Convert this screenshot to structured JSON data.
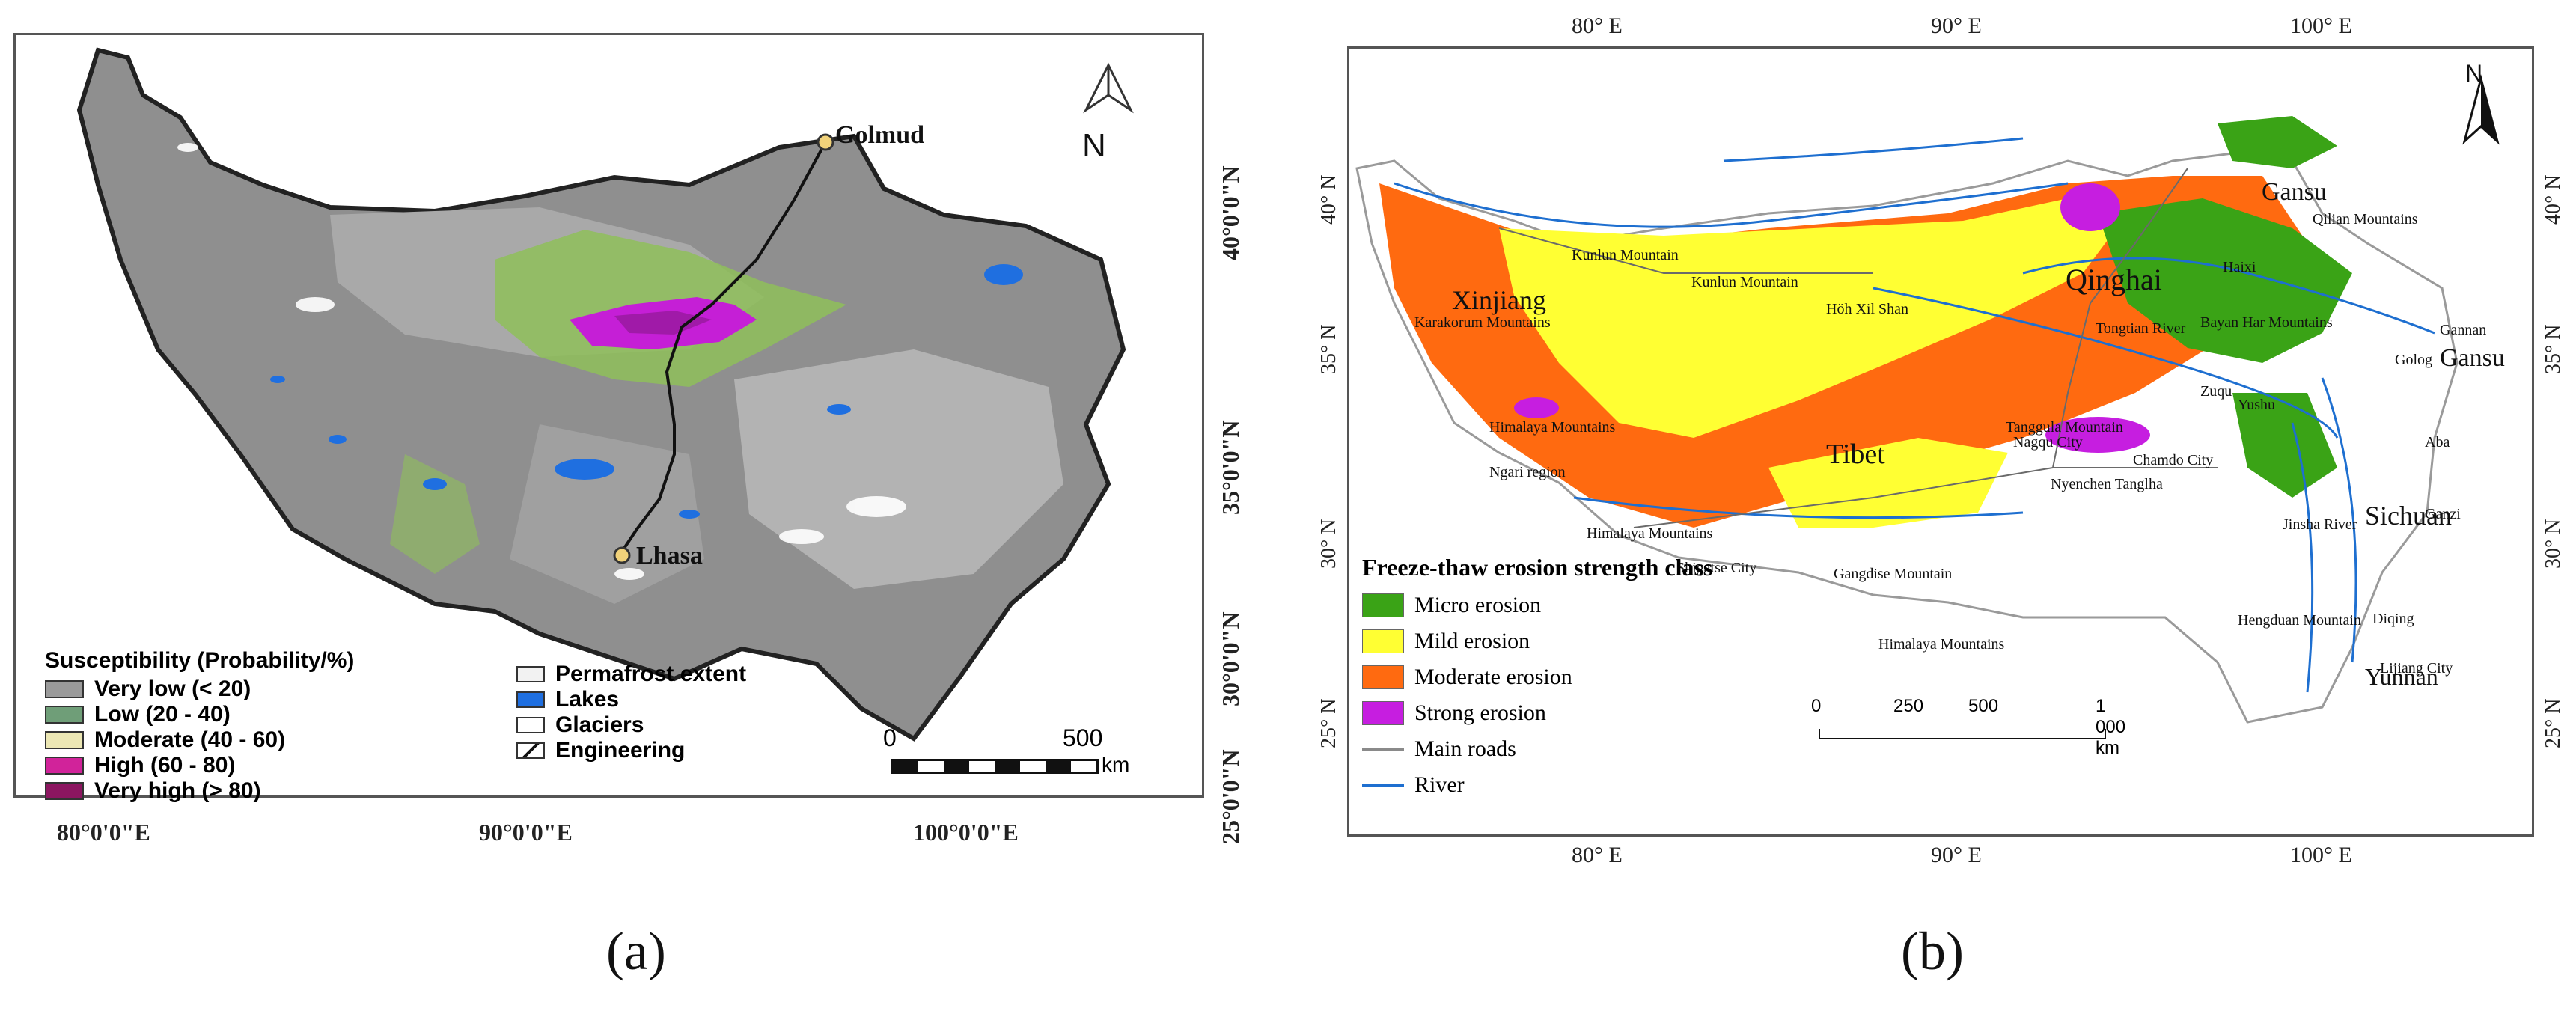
{
  "panel_a": {
    "caption": "(a)",
    "lon_labels": [
      "80°0'0\"E",
      "90°0'0\"E",
      "100°0'0\"E"
    ],
    "lat_labels": [
      "40°0'0\"N",
      "35°0'0\"N",
      "30°0'0\"N",
      "25°0'0\"N"
    ],
    "north_label": "N",
    "cities": [
      {
        "name": "Golmud"
      },
      {
        "name": "Lhasa"
      }
    ],
    "legend": {
      "title": "Susceptibility (Probability/%)",
      "items": [
        {
          "label": "Very low (< 20)",
          "color": "#9a9a9a"
        },
        {
          "label": "Low (20 - 40)",
          "color": "#6f9e78"
        },
        {
          "label": "Moderate (40 - 60)",
          "color": "#ece7b4"
        },
        {
          "label": "High (60 - 80)",
          "color": "#d1239a"
        },
        {
          "label": "Very high (> 80)",
          "color": "#8c1660"
        }
      ]
    },
    "overlay_legend": {
      "items": [
        {
          "label": "Permafrost extent",
          "color": "#f2f2f2"
        },
        {
          "label": "Lakes",
          "color": "#1f6fe0"
        },
        {
          "label": "Glaciers",
          "color": "#ffffff"
        },
        {
          "label": "Engineering",
          "color": "#ffffff"
        }
      ]
    },
    "scalebar": {
      "start": "0",
      "end": "500",
      "unit": "km"
    }
  },
  "panel_b": {
    "caption": "(b)",
    "lon_labels_top": [
      "80° E",
      "90° E",
      "100° E"
    ],
    "lon_labels_bottom": [
      "80° E",
      "90° E",
      "100° E"
    ],
    "lat_labels_left": [
      "40° N",
      "35° N",
      "30° N",
      "25° N"
    ],
    "lat_labels_right": [
      "40° N",
      "35° N",
      "30° N",
      "25° N"
    ],
    "north_label": "N",
    "regions": [
      "Xinjiang",
      "Qinghai",
      "Tibet",
      "Sichuan",
      "Gansu",
      "Gansu",
      "Yunnan"
    ],
    "features": [
      "Kunlun Mountain",
      "Kunlun Mountain",
      "Karakorum Mountains",
      "Höh Xil Shan",
      "Tongtian River",
      "Bayan Har Mountains",
      "Qilian Mountains",
      "Tanggula Mountain",
      "Nyenchen Tanglha",
      "Gangdise Mountain",
      "Himalaya Mountains",
      "Himalaya Mountains",
      "Himalaya Mountains",
      "Hengduan Mountain",
      "Jinsha River",
      "Zuqu",
      "Haixi",
      "Golog",
      "Yushu",
      "Nagqu City",
      "Chamdo City",
      "Shigatse City",
      "Aba",
      "Ganzi",
      "Diqing",
      "Lijiang City",
      "Gannan",
      "Ngari region"
    ],
    "legend": {
      "title": "Freeze-thaw erosion strength class",
      "items": [
        {
          "label": "Micro erosion",
          "color": "#3aa316"
        },
        {
          "label": "Mild erosion",
          "color": "#ffff33"
        },
        {
          "label": "Moderate erosion",
          "color": "#ff6a10"
        },
        {
          "label": "Strong erosion",
          "color": "#c61ee0"
        }
      ],
      "lines": [
        {
          "label": "Main roads",
          "color": "#8a8a8a"
        },
        {
          "label": "River",
          "color": "#1e6fd0"
        }
      ]
    },
    "scalebar": {
      "ticks": [
        "0",
        "250",
        "500",
        "1 000 km"
      ]
    }
  }
}
